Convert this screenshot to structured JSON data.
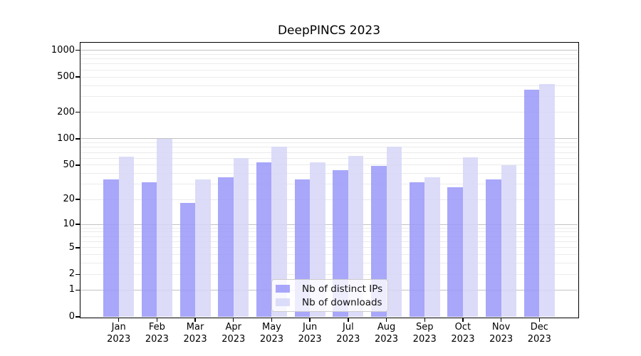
{
  "chart_data": {
    "type": "bar",
    "title": "DeepPINCS 2023",
    "scale": "log1p",
    "ylim": [
      0,
      1218
    ],
    "xlim": [
      -1,
      12
    ],
    "bar_unit_width": 0.4,
    "bar_opacity": 0.85,
    "year": "2023",
    "months": [
      "Jan",
      "Feb",
      "Mar",
      "Apr",
      "May",
      "Jun",
      "Jul",
      "Aug",
      "Sep",
      "Oct",
      "Nov",
      "Dec"
    ],
    "categories": [
      "Jan 2023",
      "Feb 2023",
      "Mar 2023",
      "Apr 2023",
      "May 2023",
      "Jun 2023",
      "Jul 2023",
      "Aug 2023",
      "Sep 2023",
      "Oct 2023",
      "Nov 2023",
      "Dec 2023"
    ],
    "series": [
      {
        "name": "Nb of distinct IPs",
        "color": "#9A98FA",
        "values": [
          34,
          32,
          18,
          36,
          54,
          34,
          44,
          49,
          32,
          28,
          34,
          360
        ]
      },
      {
        "name": "Nb of downloads",
        "color": "#D6D6F9",
        "values": [
          63,
          100,
          34,
          60,
          81,
          54,
          64,
          81,
          36,
          62,
          50,
          415
        ]
      }
    ],
    "y_ticks": [
      0,
      1,
      2,
      5,
      10,
      20,
      50,
      100,
      200,
      500,
      1000
    ],
    "major_gridlines": [
      1,
      10,
      100,
      1000
    ],
    "minor_gridlines": [
      2,
      3,
      4,
      5,
      6,
      7,
      8,
      9,
      20,
      30,
      40,
      50,
      60,
      70,
      80,
      90,
      200,
      300,
      400,
      500,
      600,
      700,
      800,
      900
    ],
    "grid_color_major": "#c3c3c3",
    "grid_color_minor": "#ebebeb",
    "legend_position": "lower center"
  }
}
